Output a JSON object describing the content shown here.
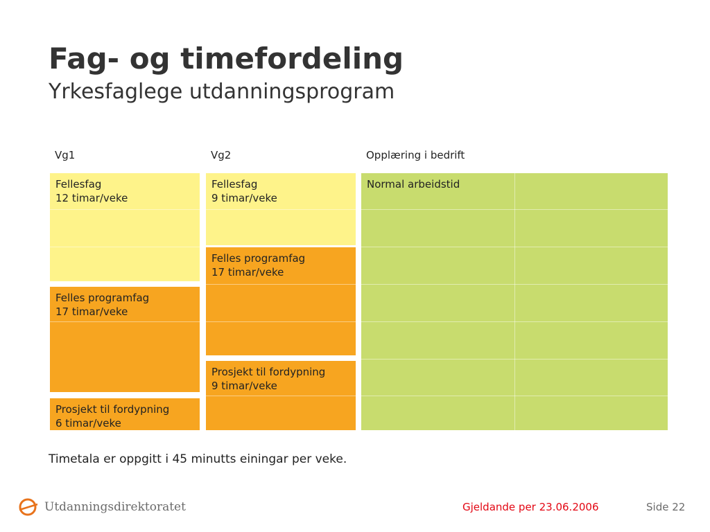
{
  "slide": {
    "title": "Fag- og timefordeling",
    "subtitle": "Yrkesfaglege utdanningsprogram"
  },
  "columns": [
    {
      "header": "Vg1",
      "blocks": [
        {
          "name": "Fellesfag",
          "hours": "12 timar/veke",
          "color": "#FEF38A"
        },
        {
          "name": "Felles programfag",
          "hours": "17 timar/veke",
          "color": "#F7A520"
        },
        {
          "name": "Prosjekt til fordypning",
          "hours": "6 timar/veke",
          "color": "#F7A520"
        }
      ]
    },
    {
      "header": "Vg2",
      "blocks": [
        {
          "name": "Fellesfag",
          "hours": "9 timar/veke",
          "color": "#FEF38A"
        },
        {
          "name": "Felles programfag",
          "hours": "17 timar/veke",
          "color": "#F7A520"
        },
        {
          "name": "Prosjekt til fordypning",
          "hours": "9 timar/veke",
          "color": "#F7A520"
        }
      ]
    },
    {
      "header": "Opplæring i bedrift",
      "blocks": [
        {
          "name": "Normal arbeidstid",
          "color": "#C8DC6E"
        }
      ]
    }
  ],
  "note": "Timetala er oppgitt i 45 minutts einingar per veke.",
  "footer": {
    "logo_text": "Utdanningsdirektoratet",
    "date": "Gjeldande per 23.06.2006",
    "date_color": "#E30613",
    "page": "Side 22"
  },
  "colors": {
    "logo_orange": "#E8731C",
    "fellesfag_yellow": "#FEF38A",
    "programfag_orange": "#F7A520",
    "bedrift_green": "#C8DC6E"
  }
}
